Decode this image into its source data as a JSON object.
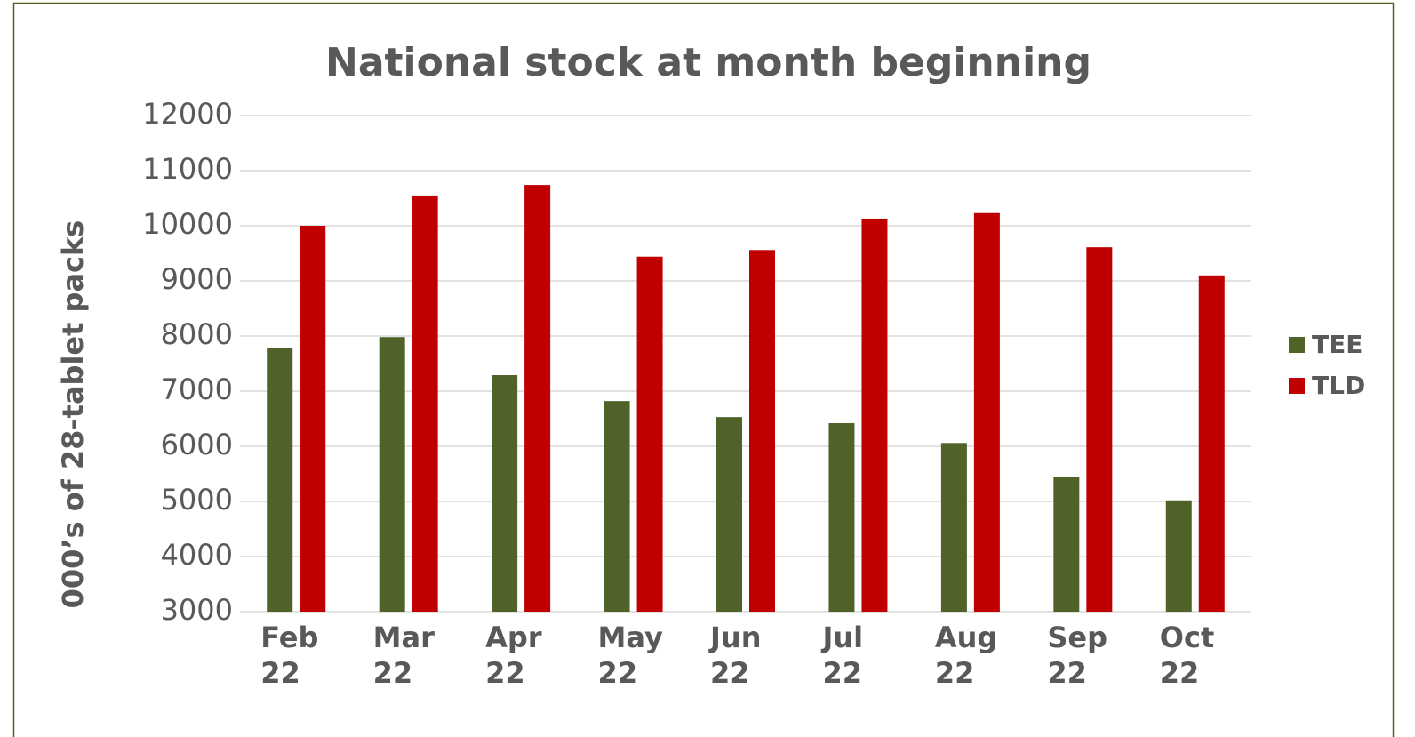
{
  "chart_data": {
    "type": "bar",
    "title": "National stock at month beginning",
    "y_label": "000’s of 28-tablet packs",
    "categories": [
      "Feb 22",
      "Mar 22",
      "Apr 22",
      "May 22",
      "Jun 22",
      "Jul 22",
      "Aug 22",
      "Sep 22",
      "Oct 22"
    ],
    "series": [
      {
        "name": "TEE",
        "color": "#4f6228",
        "values": [
          7780,
          7980,
          7290,
          6820,
          6530,
          6420,
          6060,
          5440,
          5020
        ]
      },
      {
        "name": "TLD",
        "color": "#c00000",
        "values": [
          10000,
          10550,
          10740,
          9440,
          9560,
          10130,
          10230,
          9610,
          9100
        ]
      }
    ],
    "ylim": [
      3000,
      12000
    ],
    "yticks": [
      3000,
      4000,
      5000,
      6000,
      7000,
      8000,
      9000,
      10000,
      11000,
      12000
    ],
    "grid": true,
    "legend": "right"
  }
}
